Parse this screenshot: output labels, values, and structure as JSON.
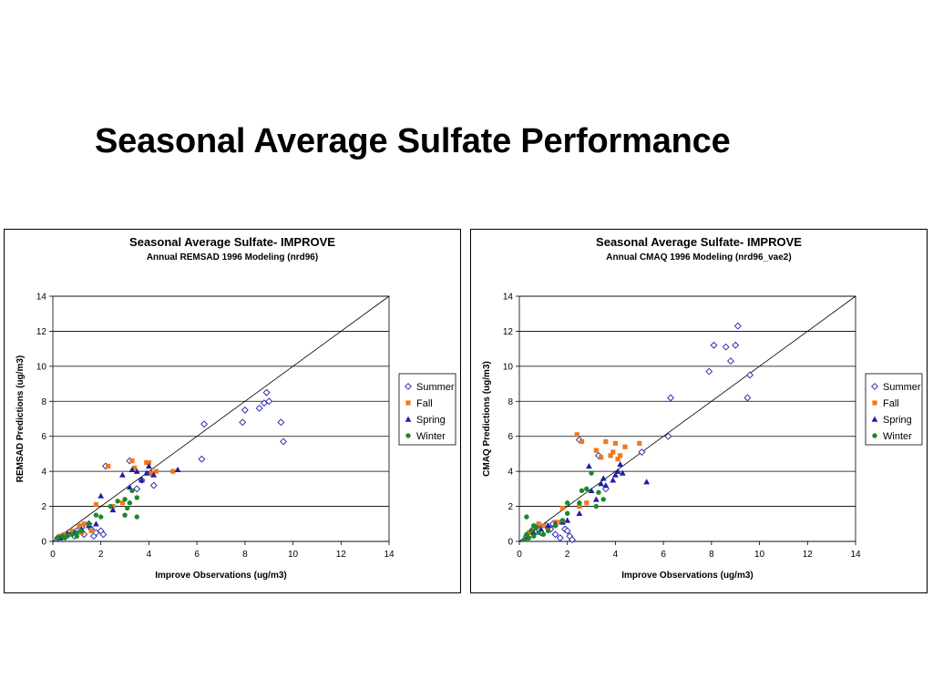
{
  "page": {
    "title": "Seasonal Average Sulfate Performance"
  },
  "chart_data": [
    {
      "type": "scatter",
      "title": "Seasonal Average Sulfate- IMPROVE",
      "subtitle": "Annual REMSAD 1996 Modeling (nrd96)",
      "xlabel": "Improve Observations (ug/m3)",
      "ylabel": "REMSAD Predictions (ug/m3)",
      "xlim": [
        0,
        14
      ],
      "ylim": [
        0,
        14
      ],
      "xticks": [
        0,
        2,
        4,
        6,
        8,
        10,
        12,
        14
      ],
      "yticks": [
        0,
        2,
        4,
        6,
        8,
        10,
        12,
        14
      ],
      "grid": "horizontal",
      "reference_line": "1:1",
      "legend_position": "right",
      "series": [
        {
          "name": "Summer",
          "marker": "diamond-open",
          "color": "#1f1fa8",
          "points": [
            [
              0.2,
              0.2
            ],
            [
              0.4,
              0.3
            ],
            [
              0.6,
              0.4
            ],
            [
              0.8,
              0.5
            ],
            [
              1.0,
              0.6
            ],
            [
              1.2,
              0.8
            ],
            [
              1.5,
              1.0
            ],
            [
              1.6,
              0.7
            ],
            [
              1.7,
              0.3
            ],
            [
              1.8,
              0.5
            ],
            [
              2.0,
              0.6
            ],
            [
              2.1,
              0.4
            ],
            [
              0.9,
              0.3
            ],
            [
              1.3,
              0.4
            ],
            [
              2.2,
              4.3
            ],
            [
              3.2,
              4.6
            ],
            [
              3.5,
              3.0
            ],
            [
              3.7,
              3.5
            ],
            [
              4.1,
              3.9
            ],
            [
              4.2,
              3.2
            ],
            [
              6.3,
              6.7
            ],
            [
              6.2,
              4.7
            ],
            [
              7.9,
              6.8
            ],
            [
              8.0,
              7.5
            ],
            [
              8.6,
              7.6
            ],
            [
              8.8,
              7.9
            ],
            [
              9.0,
              8.0
            ],
            [
              8.9,
              8.5
            ],
            [
              9.5,
              6.8
            ],
            [
              9.6,
              5.7
            ]
          ]
        },
        {
          "name": "Fall",
          "marker": "square",
          "color": "#f07820",
          "points": [
            [
              0.3,
              0.3
            ],
            [
              0.5,
              0.4
            ],
            [
              0.8,
              0.6
            ],
            [
              1.1,
              0.9
            ],
            [
              1.3,
              1.0
            ],
            [
              1.6,
              0.6
            ],
            [
              1.8,
              2.1
            ],
            [
              2.3,
              4.3
            ],
            [
              2.5,
              2.0
            ],
            [
              3.3,
              4.6
            ],
            [
              3.4,
              4.2
            ],
            [
              3.9,
              4.5
            ],
            [
              4.0,
              4.5
            ],
            [
              4.1,
              3.9
            ],
            [
              4.3,
              4.0
            ],
            [
              5.0,
              4.0
            ],
            [
              2.9,
              2.2
            ],
            [
              1.2,
              0.5
            ]
          ]
        },
        {
          "name": "Spring",
          "marker": "triangle",
          "color": "#1f1fa8",
          "points": [
            [
              0.3,
              0.2
            ],
            [
              0.6,
              0.4
            ],
            [
              0.9,
              0.5
            ],
            [
              1.2,
              0.7
            ],
            [
              1.5,
              0.9
            ],
            [
              1.8,
              1.0
            ],
            [
              2.0,
              2.6
            ],
            [
              2.5,
              1.8
            ],
            [
              2.9,
              3.8
            ],
            [
              3.3,
              4.1
            ],
            [
              3.5,
              4.0
            ],
            [
              3.7,
              3.5
            ],
            [
              3.9,
              3.9
            ],
            [
              4.0,
              4.3
            ],
            [
              4.2,
              3.8
            ],
            [
              5.2,
              4.1
            ],
            [
              3.2,
              3.1
            ]
          ]
        },
        {
          "name": "Winter",
          "marker": "circle",
          "color": "#1a8a2a",
          "points": [
            [
              0.2,
              0.2
            ],
            [
              0.4,
              0.3
            ],
            [
              0.6,
              0.3
            ],
            [
              0.8,
              0.4
            ],
            [
              1.0,
              0.5
            ],
            [
              1.2,
              0.6
            ],
            [
              1.5,
              1.0
            ],
            [
              1.8,
              1.5
            ],
            [
              2.0,
              1.4
            ],
            [
              2.4,
              2.0
            ],
            [
              2.7,
              2.3
            ],
            [
              3.0,
              2.4
            ],
            [
              3.2,
              2.2
            ],
            [
              3.3,
              2.9
            ],
            [
              3.5,
              2.5
            ],
            [
              3.5,
              1.4
            ],
            [
              3.0,
              1.5
            ],
            [
              3.1,
              1.9
            ],
            [
              0.5,
              0.2
            ],
            [
              1.0,
              0.3
            ]
          ]
        }
      ]
    },
    {
      "type": "scatter",
      "title": "Seasonal Average Sulfate- IMPROVE",
      "subtitle": "Annual CMAQ 1996 Modeling (nrd96_vae2)",
      "xlabel": "Improve Observations (ug/m3)",
      "ylabel": "CMAQ Predictions (ug/m3)",
      "xlim": [
        0,
        14
      ],
      "ylim": [
        0,
        14
      ],
      "xticks": [
        0,
        2,
        4,
        6,
        8,
        10,
        12,
        14
      ],
      "yticks": [
        0,
        2,
        4,
        6,
        8,
        10,
        12,
        14
      ],
      "grid": "horizontal",
      "reference_line": "1:1",
      "legend_position": "right",
      "series": [
        {
          "name": "Summer",
          "marker": "diamond-open",
          "color": "#1f1fa8",
          "points": [
            [
              0.3,
              0.3
            ],
            [
              0.5,
              0.6
            ],
            [
              0.7,
              0.8
            ],
            [
              0.9,
              0.5
            ],
            [
              1.1,
              0.9
            ],
            [
              1.3,
              0.7
            ],
            [
              1.5,
              0.4
            ],
            [
              1.7,
              0.2
            ],
            [
              1.9,
              0.7
            ],
            [
              2.0,
              0.6
            ],
            [
              2.1,
              0.3
            ],
            [
              2.2,
              0.1
            ],
            [
              1.4,
              1.0
            ],
            [
              2.5,
              5.8
            ],
            [
              3.3,
              4.9
            ],
            [
              3.6,
              3.0
            ],
            [
              5.1,
              5.1
            ],
            [
              6.3,
              8.2
            ],
            [
              6.2,
              6.0
            ],
            [
              7.9,
              9.7
            ],
            [
              8.1,
              11.2
            ],
            [
              8.6,
              11.1
            ],
            [
              8.8,
              10.3
            ],
            [
              9.0,
              11.2
            ],
            [
              9.1,
              12.3
            ],
            [
              9.5,
              8.2
            ],
            [
              9.6,
              9.5
            ]
          ]
        },
        {
          "name": "Fall",
          "marker": "square",
          "color": "#f07820",
          "points": [
            [
              0.4,
              0.5
            ],
            [
              0.6,
              0.8
            ],
            [
              0.8,
              1.0
            ],
            [
              1.0,
              0.9
            ],
            [
              1.2,
              0.8
            ],
            [
              1.5,
              1.1
            ],
            [
              1.8,
              1.9
            ],
            [
              2.4,
              6.1
            ],
            [
              2.6,
              5.7
            ],
            [
              3.2,
              5.2
            ],
            [
              3.4,
              4.8
            ],
            [
              3.6,
              5.7
            ],
            [
              3.8,
              4.9
            ],
            [
              3.9,
              5.1
            ],
            [
              4.0,
              5.6
            ],
            [
              4.1,
              4.7
            ],
            [
              4.2,
              4.9
            ],
            [
              4.4,
              5.4
            ],
            [
              5.0,
              5.6
            ],
            [
              2.8,
              2.2
            ],
            [
              2.5,
              2.0
            ],
            [
              1.7,
              1.1
            ]
          ]
        },
        {
          "name": "Spring",
          "marker": "triangle",
          "color": "#1f1fa8",
          "points": [
            [
              0.3,
              0.2
            ],
            [
              0.6,
              0.5
            ],
            [
              0.9,
              0.7
            ],
            [
              1.2,
              0.9
            ],
            [
              1.5,
              1.0
            ],
            [
              1.8,
              1.1
            ],
            [
              2.0,
              1.2
            ],
            [
              2.5,
              1.6
            ],
            [
              3.0,
              2.9
            ],
            [
              3.2,
              2.4
            ],
            [
              3.4,
              3.3
            ],
            [
              3.5,
              3.6
            ],
            [
              3.6,
              3.2
            ],
            [
              3.9,
              3.5
            ],
            [
              4.0,
              3.8
            ],
            [
              4.1,
              4.0
            ],
            [
              4.2,
              4.4
            ],
            [
              4.3,
              3.9
            ],
            [
              5.3,
              3.4
            ],
            [
              2.9,
              4.3
            ]
          ]
        },
        {
          "name": "Winter",
          "marker": "circle",
          "color": "#1a8a2a",
          "points": [
            [
              0.2,
              0.1
            ],
            [
              0.3,
              0.4
            ],
            [
              0.4,
              0.2
            ],
            [
              0.5,
              0.6
            ],
            [
              0.6,
              0.3
            ],
            [
              0.7,
              0.8
            ],
            [
              0.8,
              0.5
            ],
            [
              1.0,
              0.4
            ],
            [
              1.2,
              0.6
            ],
            [
              1.5,
              0.9
            ],
            [
              1.8,
              1.2
            ],
            [
              2.0,
              2.2
            ],
            [
              2.0,
              1.6
            ],
            [
              2.5,
              2.2
            ],
            [
              2.6,
              2.9
            ],
            [
              2.8,
              3.0
            ],
            [
              3.0,
              3.9
            ],
            [
              3.2,
              2.0
            ],
            [
              3.3,
              2.8
            ],
            [
              3.5,
              2.4
            ],
            [
              0.3,
              1.4
            ],
            [
              0.6,
              0.9
            ]
          ]
        }
      ]
    }
  ]
}
